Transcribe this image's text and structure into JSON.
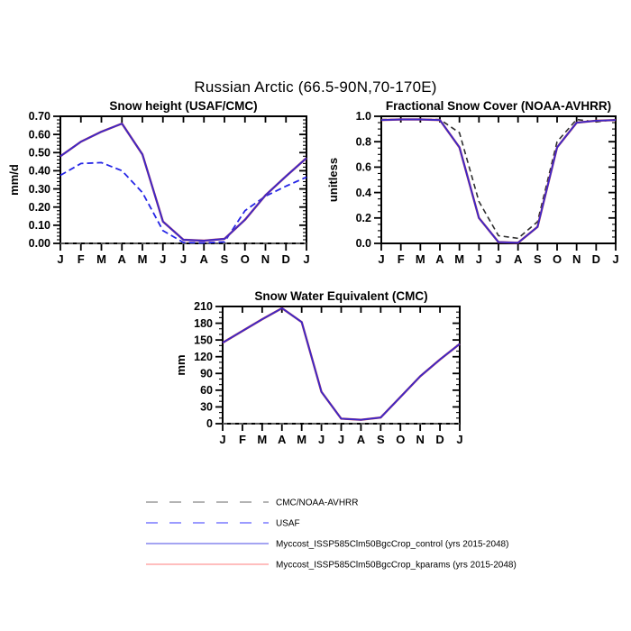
{
  "page_title": "Russian Arctic (66.5-90N,70-170E)",
  "chart_data": [
    {
      "type": "line",
      "title": "Snow height (USAF/CMC)",
      "ylabel": "mm/d",
      "xlabel": "",
      "categories": [
        "J",
        "F",
        "M",
        "A",
        "M",
        "J",
        "J",
        "A",
        "S",
        "O",
        "N",
        "D",
        "J"
      ],
      "ylim": [
        0,
        0.7
      ],
      "ytick_step": 0.1,
      "ytick_minor_step": 0.02,
      "ytick_decimals": 2,
      "grid": false,
      "legend_position": "none",
      "series": [
        {
          "name": "CMC/NOAA-AVHRR",
          "line": "dashed",
          "color": "#8a8a8a",
          "width": 1.3,
          "dash": "5,4",
          "values": [
            0,
            0,
            0,
            0,
            0,
            0,
            0,
            0,
            0,
            0,
            0,
            0,
            0
          ]
        },
        {
          "name": "USAF",
          "line": "dashed",
          "color": "#2525e6",
          "width": 1.8,
          "dash": "7,4",
          "values": [
            0.375,
            0.44,
            0.445,
            0.4,
            0.28,
            0.07,
            0.005,
            0.003,
            0.008,
            0.18,
            0.26,
            0.315,
            0.365
          ]
        },
        {
          "name": "Myccost_ISSP585Clm50BgcCrop_kparams (yrs 2015-2048)",
          "line": "solid",
          "color": "#d04545",
          "width": 2.4,
          "values": [
            0.48,
            0.56,
            0.615,
            0.66,
            0.49,
            0.12,
            0.02,
            0.015,
            0.025,
            0.13,
            0.265,
            0.37,
            0.47
          ]
        },
        {
          "name": "Myccost_ISSP585Clm50BgcCrop_control (yrs 2015-2048)",
          "line": "solid",
          "color": "#3d28c8",
          "width": 1.9,
          "values": [
            0.48,
            0.56,
            0.615,
            0.66,
            0.49,
            0.12,
            0.02,
            0.015,
            0.025,
            0.13,
            0.265,
            0.37,
            0.47
          ]
        }
      ]
    },
    {
      "type": "line",
      "title": "Fractional Snow Cover (NOAA-AVHRR)",
      "ylabel": "unitless",
      "xlabel": "",
      "categories": [
        "J",
        "F",
        "M",
        "A",
        "M",
        "J",
        "J",
        "A",
        "S",
        "O",
        "N",
        "D",
        "J"
      ],
      "ylim": [
        0,
        1.0
      ],
      "ytick_step": 0.2,
      "ytick_minor_step": 0.05,
      "ytick_decimals": 1,
      "grid": false,
      "legend_position": "none",
      "series": [
        {
          "name": "CMC/NOAA-AVHRR",
          "line": "dashed",
          "color": "#2e2e2e",
          "width": 1.6,
          "dash": "6,4",
          "values": [
            0.975,
            0.975,
            0.975,
            0.975,
            0.87,
            0.33,
            0.06,
            0.04,
            0.17,
            0.8,
            0.975,
            0.955,
            0.975
          ]
        },
        {
          "name": "Myccost_ISSP585Clm50BgcCrop_kparams (yrs 2015-2048)",
          "line": "solid",
          "color": "#d04545",
          "width": 2.4,
          "values": [
            0.97,
            0.975,
            0.975,
            0.97,
            0.755,
            0.2,
            0.01,
            0.005,
            0.13,
            0.755,
            0.95,
            0.965,
            0.97
          ]
        },
        {
          "name": "Myccost_ISSP585Clm50BgcCrop_control (yrs 2015-2048)",
          "line": "solid",
          "color": "#3d28c8",
          "width": 1.9,
          "values": [
            0.97,
            0.975,
            0.975,
            0.97,
            0.755,
            0.2,
            0.01,
            0.005,
            0.13,
            0.755,
            0.95,
            0.965,
            0.97
          ]
        }
      ]
    },
    {
      "type": "line",
      "title": "Snow Water Equivalent (CMC)",
      "ylabel": "mm",
      "xlabel": "",
      "categories": [
        "J",
        "F",
        "M",
        "A",
        "M",
        "J",
        "J",
        "A",
        "S",
        "O",
        "N",
        "D",
        "J"
      ],
      "ylim": [
        0,
        210
      ],
      "ytick_step": 30,
      "ytick_minor_step": 10,
      "ytick_decimals": 0,
      "grid": false,
      "legend_position": "none",
      "series": [
        {
          "name": "CMC/NOAA-AVHRR",
          "line": "dashed",
          "color": "#8a8a8a",
          "width": 1.3,
          "dash": "5,4",
          "values": [
            0,
            0,
            0,
            0,
            0,
            0,
            0,
            0,
            0,
            0,
            0,
            0,
            0
          ]
        },
        {
          "name": "Myccost_ISSP585Clm50BgcCrop_kparams (yrs 2015-2048)",
          "line": "solid",
          "color": "#d04545",
          "width": 2.4,
          "values": [
            145,
            166,
            187,
            207,
            182,
            57,
            9,
            7,
            11,
            48,
            85,
            115,
            143
          ]
        },
        {
          "name": "Myccost_ISSP585Clm50BgcCrop_control (yrs 2015-2048)",
          "line": "solid",
          "color": "#3d28c8",
          "width": 1.9,
          "values": [
            145,
            166,
            187,
            207,
            182,
            57,
            9,
            7,
            11,
            48,
            85,
            115,
            143
          ]
        }
      ]
    }
  ],
  "legend": {
    "items": [
      {
        "label": "CMC/NOAA-AVHRR",
        "color": "#9a9a9a",
        "line": "dashed"
      },
      {
        "label": "USAF",
        "color": "#7a7aff",
        "line": "dashed"
      },
      {
        "label": "Myccost_ISSP585Clm50BgcCrop_control (yrs 2015-2048)",
        "color": "#8585ee",
        "line": "solid"
      },
      {
        "label": "Myccost_ISSP585Clm50BgcCrop_kparams (yrs 2015-2048)",
        "color": "#ffa8a8",
        "line": "solid"
      }
    ]
  }
}
